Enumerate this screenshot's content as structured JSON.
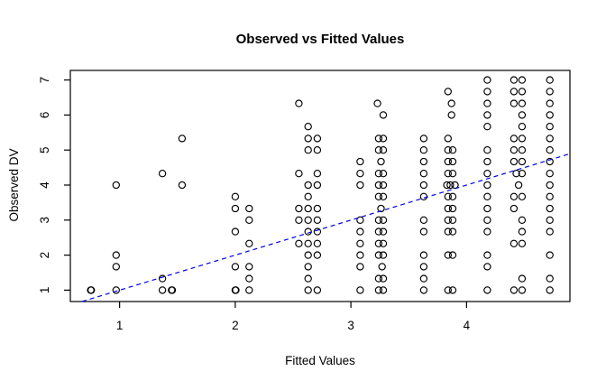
{
  "chart_data": {
    "type": "scatter",
    "title": "Observed vs Fitted Values",
    "xlabel": "Fitted Values",
    "ylabel": "Observed DV",
    "x_ticks": [
      1,
      2,
      3,
      4
    ],
    "y_ticks": [
      1,
      2,
      3,
      4,
      5,
      6,
      7
    ],
    "xlim": [
      0.574,
      4.894
    ],
    "ylim": [
      0.675,
      7.273
    ],
    "grid": false,
    "legend": "none",
    "marker": {
      "shape": "open-circle",
      "color": "#000000"
    },
    "reference_line": {
      "slope": 1,
      "intercept": 0,
      "color": "#0000EE",
      "style": "dashed"
    },
    "points": [
      [
        0.75,
        1
      ],
      [
        0.755,
        1
      ],
      [
        0.97,
        4
      ],
      [
        0.97,
        2
      ],
      [
        0.97,
        1.67
      ],
      [
        0.97,
        1
      ],
      [
        1.37,
        4.33
      ],
      [
        1.37,
        1.33
      ],
      [
        1.37,
        1
      ],
      [
        1.45,
        1
      ],
      [
        1.455,
        1
      ],
      [
        1.54,
        5.33
      ],
      [
        1.54,
        4
      ],
      [
        2,
        3.67
      ],
      [
        2,
        3.33
      ],
      [
        2,
        2.67
      ],
      [
        2,
        1.67
      ],
      [
        2,
        1
      ],
      [
        2.005,
        1
      ],
      [
        2.12,
        3.33
      ],
      [
        2.12,
        3
      ],
      [
        2.12,
        2.33
      ],
      [
        2.12,
        1.67
      ],
      [
        2.12,
        1.33
      ],
      [
        2.12,
        1
      ],
      [
        2.55,
        6.33
      ],
      [
        2.55,
        4.33
      ],
      [
        2.55,
        3.33
      ],
      [
        2.55,
        3
      ],
      [
        2.55,
        2.33
      ],
      [
        2.63,
        5.67
      ],
      [
        2.63,
        5.33
      ],
      [
        2.63,
        5
      ],
      [
        2.63,
        4
      ],
      [
        2.63,
        3.67
      ],
      [
        2.63,
        3.33
      ],
      [
        2.63,
        3
      ],
      [
        2.63,
        2.67
      ],
      [
        2.63,
        2.33
      ],
      [
        2.63,
        2
      ],
      [
        2.63,
        1.67
      ],
      [
        2.63,
        1.33
      ],
      [
        2.63,
        1
      ],
      [
        2.71,
        5.33
      ],
      [
        2.71,
        5
      ],
      [
        2.71,
        4.33
      ],
      [
        2.71,
        4
      ],
      [
        2.71,
        3.33
      ],
      [
        2.71,
        3
      ],
      [
        2.71,
        2.67
      ],
      [
        2.71,
        2.33
      ],
      [
        2.71,
        2
      ],
      [
        2.71,
        1
      ],
      [
        3.08,
        4.67
      ],
      [
        3.08,
        4.33
      ],
      [
        3.08,
        4
      ],
      [
        3.08,
        3
      ],
      [
        3.08,
        2.67
      ],
      [
        3.08,
        2.33
      ],
      [
        3.08,
        2
      ],
      [
        3.08,
        1.67
      ],
      [
        3.08,
        1
      ],
      [
        3.23,
        6.33
      ],
      [
        3.28,
        6
      ],
      [
        3.24,
        5.33
      ],
      [
        3.28,
        5.33
      ],
      [
        3.24,
        5
      ],
      [
        3.28,
        5
      ],
      [
        3.26,
        4.67
      ],
      [
        3.24,
        4.33
      ],
      [
        3.28,
        4.33
      ],
      [
        3.24,
        4
      ],
      [
        3.28,
        4
      ],
      [
        3.24,
        3.67
      ],
      [
        3.28,
        3.67
      ],
      [
        3.26,
        3.33
      ],
      [
        3.24,
        3
      ],
      [
        3.28,
        3
      ],
      [
        3.24,
        2.67
      ],
      [
        3.28,
        2.67
      ],
      [
        3.24,
        2.33
      ],
      [
        3.28,
        2.33
      ],
      [
        3.24,
        2
      ],
      [
        3.28,
        2
      ],
      [
        3.27,
        1.67
      ],
      [
        3.24,
        1.33
      ],
      [
        3.28,
        1.33
      ],
      [
        3.24,
        1
      ],
      [
        3.28,
        1
      ],
      [
        3.63,
        5.33
      ],
      [
        3.63,
        5
      ],
      [
        3.63,
        4.67
      ],
      [
        3.63,
        4.33
      ],
      [
        3.63,
        4
      ],
      [
        3.63,
        3.67
      ],
      [
        3.63,
        3
      ],
      [
        3.63,
        2.67
      ],
      [
        3.63,
        2
      ],
      [
        3.63,
        1.67
      ],
      [
        3.63,
        1.33
      ],
      [
        3.63,
        1
      ],
      [
        3.84,
        6.67
      ],
      [
        3.87,
        6.33
      ],
      [
        3.87,
        6
      ],
      [
        3.84,
        5.33
      ],
      [
        3.84,
        5
      ],
      [
        3.88,
        5
      ],
      [
        3.84,
        4.67
      ],
      [
        3.88,
        4.67
      ],
      [
        3.84,
        4.33
      ],
      [
        3.88,
        4.33
      ],
      [
        3.83,
        4
      ],
      [
        3.86,
        4
      ],
      [
        3.9,
        4
      ],
      [
        3.84,
        3.67
      ],
      [
        3.88,
        3.67
      ],
      [
        3.84,
        3.33
      ],
      [
        3.88,
        3.33
      ],
      [
        3.84,
        3
      ],
      [
        3.88,
        3
      ],
      [
        3.84,
        2.67
      ],
      [
        3.88,
        2.67
      ],
      [
        3.84,
        2
      ],
      [
        3.88,
        2
      ],
      [
        3.84,
        1
      ],
      [
        3.88,
        1
      ],
      [
        4.18,
        7
      ],
      [
        4.18,
        6.67
      ],
      [
        4.18,
        6.33
      ],
      [
        4.18,
        6
      ],
      [
        4.18,
        5.67
      ],
      [
        4.18,
        5
      ],
      [
        4.18,
        4.67
      ],
      [
        4.18,
        4.33
      ],
      [
        4.18,
        4
      ],
      [
        4.18,
        3.67
      ],
      [
        4.18,
        3.33
      ],
      [
        4.18,
        3
      ],
      [
        4.18,
        2.67
      ],
      [
        4.18,
        2
      ],
      [
        4.18,
        1.67
      ],
      [
        4.18,
        1
      ],
      [
        4.41,
        7
      ],
      [
        4.48,
        7
      ],
      [
        4.41,
        6.67
      ],
      [
        4.48,
        6.67
      ],
      [
        4.41,
        6.33
      ],
      [
        4.48,
        6.33
      ],
      [
        4.48,
        6
      ],
      [
        4.48,
        5.67
      ],
      [
        4.41,
        5.33
      ],
      [
        4.48,
        5.33
      ],
      [
        4.41,
        5
      ],
      [
        4.48,
        5
      ],
      [
        4.41,
        4.67
      ],
      [
        4.48,
        4.67
      ],
      [
        4.43,
        4.33
      ],
      [
        4.48,
        4.33
      ],
      [
        4.45,
        4
      ],
      [
        4.41,
        3.67
      ],
      [
        4.48,
        3.67
      ],
      [
        4.41,
        3.33
      ],
      [
        4.48,
        3
      ],
      [
        4.48,
        2.67
      ],
      [
        4.41,
        2.33
      ],
      [
        4.48,
        2.33
      ],
      [
        4.48,
        1.33
      ],
      [
        4.41,
        1
      ],
      [
        4.48,
        1
      ],
      [
        4.72,
        7
      ],
      [
        4.72,
        6.67
      ],
      [
        4.72,
        6.33
      ],
      [
        4.72,
        6
      ],
      [
        4.72,
        5.67
      ],
      [
        4.72,
        5.33
      ],
      [
        4.72,
        5
      ],
      [
        4.72,
        4.67
      ],
      [
        4.72,
        4.33
      ],
      [
        4.72,
        4
      ],
      [
        4.72,
        3.67
      ],
      [
        4.72,
        3.33
      ],
      [
        4.72,
        3
      ],
      [
        4.72,
        2.67
      ],
      [
        4.72,
        2
      ],
      [
        4.72,
        1.33
      ],
      [
        4.72,
        1
      ]
    ]
  }
}
